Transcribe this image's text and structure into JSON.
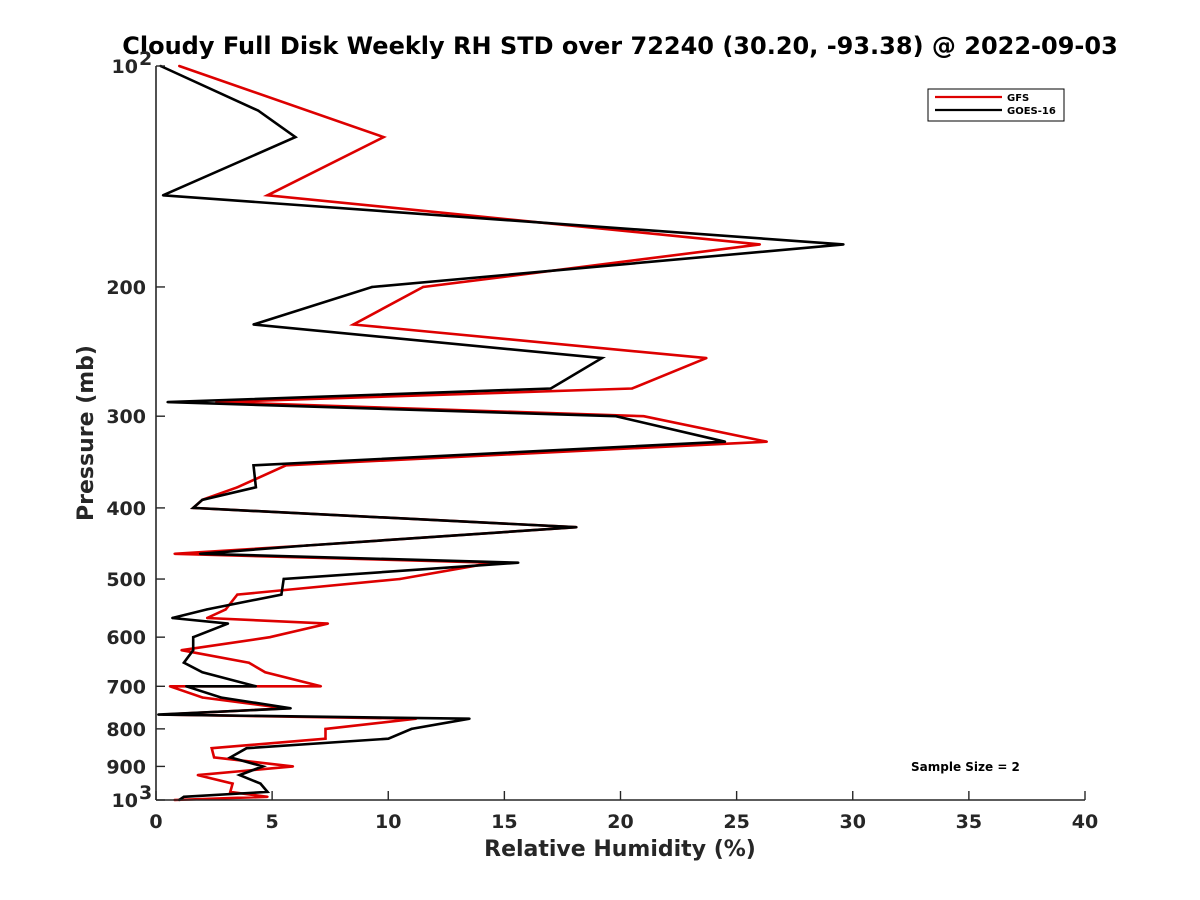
{
  "chart_data": {
    "type": "line",
    "title": "Cloudy Full Disk Weekly RH STD over 72240 (30.20, -93.38) @ 2022-09-03",
    "xlabel": "Relative Humidity (%)",
    "ylabel": "Pressure (mb)",
    "xlim": [
      0,
      40
    ],
    "ylim": [
      100,
      1000
    ],
    "yscale": "log",
    "y_reversed": true,
    "x_ticks": [
      {
        "value": 0,
        "label": "0"
      },
      {
        "value": 5,
        "label": "5"
      },
      {
        "value": 10,
        "label": "10"
      },
      {
        "value": 15,
        "label": "15"
      },
      {
        "value": 20,
        "label": "20"
      },
      {
        "value": 25,
        "label": "25"
      },
      {
        "value": 30,
        "label": "30"
      },
      {
        "value": 35,
        "label": "35"
      },
      {
        "value": 40,
        "label": "40"
      }
    ],
    "y_ticks": [
      {
        "value": 100,
        "label": "10",
        "sup": "2"
      },
      {
        "value": 200,
        "label": "200"
      },
      {
        "value": 300,
        "label": "300"
      },
      {
        "value": 400,
        "label": "400"
      },
      {
        "value": 500,
        "label": "500"
      },
      {
        "value": 600,
        "label": "600"
      },
      {
        "value": 700,
        "label": "700"
      },
      {
        "value": 800,
        "label": "800"
      },
      {
        "value": 900,
        "label": "900"
      },
      {
        "value": 1000,
        "label": "10",
        "sup": "3"
      }
    ],
    "legend": {
      "placement": "top-right",
      "entries": [
        "GFS",
        "GOES-16"
      ]
    },
    "annotation": "Sample Size = 2",
    "series": [
      {
        "name": "GFS",
        "color": "#dd0000",
        "points": [
          [
            1.0,
            100
          ],
          [
            9.8,
            125
          ],
          [
            4.8,
            150
          ],
          [
            26.0,
            175
          ],
          [
            11.5,
            200
          ],
          [
            8.5,
            225
          ],
          [
            23.7,
            250
          ],
          [
            20.5,
            275
          ],
          [
            2.6,
            287
          ],
          [
            21.0,
            300
          ],
          [
            26.3,
            325
          ],
          [
            5.6,
            350
          ],
          [
            3.5,
            375
          ],
          [
            2.0,
            390
          ],
          [
            1.6,
            400
          ],
          [
            18.1,
            425
          ],
          [
            6.5,
            450
          ],
          [
            0.8,
            462
          ],
          [
            14.5,
            475
          ],
          [
            10.5,
            500
          ],
          [
            3.5,
            525
          ],
          [
            3.0,
            550
          ],
          [
            2.2,
            565
          ],
          [
            7.4,
            575
          ],
          [
            4.9,
            600
          ],
          [
            1.1,
            625
          ],
          [
            4.0,
            650
          ],
          [
            4.7,
            670
          ],
          [
            7.1,
            700
          ],
          [
            0.6,
            700
          ],
          [
            2.0,
            725
          ],
          [
            5.6,
            750
          ],
          [
            0.3,
            765
          ],
          [
            11.2,
            775
          ],
          [
            7.3,
            800
          ],
          [
            7.3,
            825
          ],
          [
            2.4,
            850
          ],
          [
            2.5,
            875
          ],
          [
            5.9,
            900
          ],
          [
            1.8,
            925
          ],
          [
            3.3,
            950
          ],
          [
            3.2,
            975
          ],
          [
            4.8,
            990
          ],
          [
            0.8,
            1000
          ]
        ]
      },
      {
        "name": "GOES-16",
        "color": "#000000",
        "points": [
          [
            0.2,
            100
          ],
          [
            4.4,
            115
          ],
          [
            6.0,
            125
          ],
          [
            0.3,
            150
          ],
          [
            29.6,
            175
          ],
          [
            9.3,
            200
          ],
          [
            4.2,
            225
          ],
          [
            19.2,
            250
          ],
          [
            17.0,
            275
          ],
          [
            0.5,
            287
          ],
          [
            19.8,
            300
          ],
          [
            24.5,
            325
          ],
          [
            4.2,
            350
          ],
          [
            4.3,
            375
          ],
          [
            2.0,
            390
          ],
          [
            1.6,
            400
          ],
          [
            18.1,
            425
          ],
          [
            6.5,
            450
          ],
          [
            1.9,
            462
          ],
          [
            15.6,
            475
          ],
          [
            5.5,
            500
          ],
          [
            5.4,
            525
          ],
          [
            2.2,
            550
          ],
          [
            0.7,
            565
          ],
          [
            3.1,
            575
          ],
          [
            1.6,
            600
          ],
          [
            1.6,
            625
          ],
          [
            1.2,
            650
          ],
          [
            2.0,
            670
          ],
          [
            4.3,
            700
          ],
          [
            1.3,
            700
          ],
          [
            2.8,
            725
          ],
          [
            5.8,
            750
          ],
          [
            0.1,
            765
          ],
          [
            13.5,
            775
          ],
          [
            11.0,
            800
          ],
          [
            10.0,
            825
          ],
          [
            3.9,
            850
          ],
          [
            3.2,
            875
          ],
          [
            4.6,
            900
          ],
          [
            3.6,
            925
          ],
          [
            4.5,
            950
          ],
          [
            4.8,
            975
          ],
          [
            1.2,
            990
          ],
          [
            1.0,
            1000
          ]
        ]
      }
    ]
  }
}
